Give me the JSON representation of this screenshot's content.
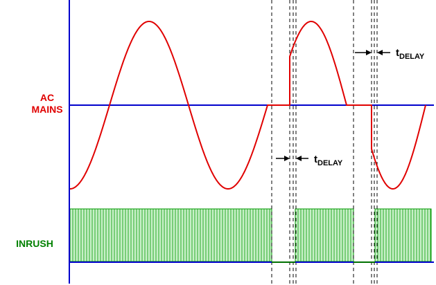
{
  "labels": {
    "ac_mains_line1": "AC",
    "ac_mains_line2": "MAINS",
    "inrush": "INRUSH",
    "tdelay_main": "t",
    "tdelay_sub": "DELAY"
  },
  "colors": {
    "axis": "#0000cc",
    "ac_waveform": "#e00000",
    "ac_label": "#e00000",
    "inrush_fill": "#c8f0c8",
    "inrush_hatch": "#009900",
    "inrush_label": "#008000",
    "inrush_baseline": "#007000",
    "guide": "#000000",
    "text": "#000000"
  }
}
